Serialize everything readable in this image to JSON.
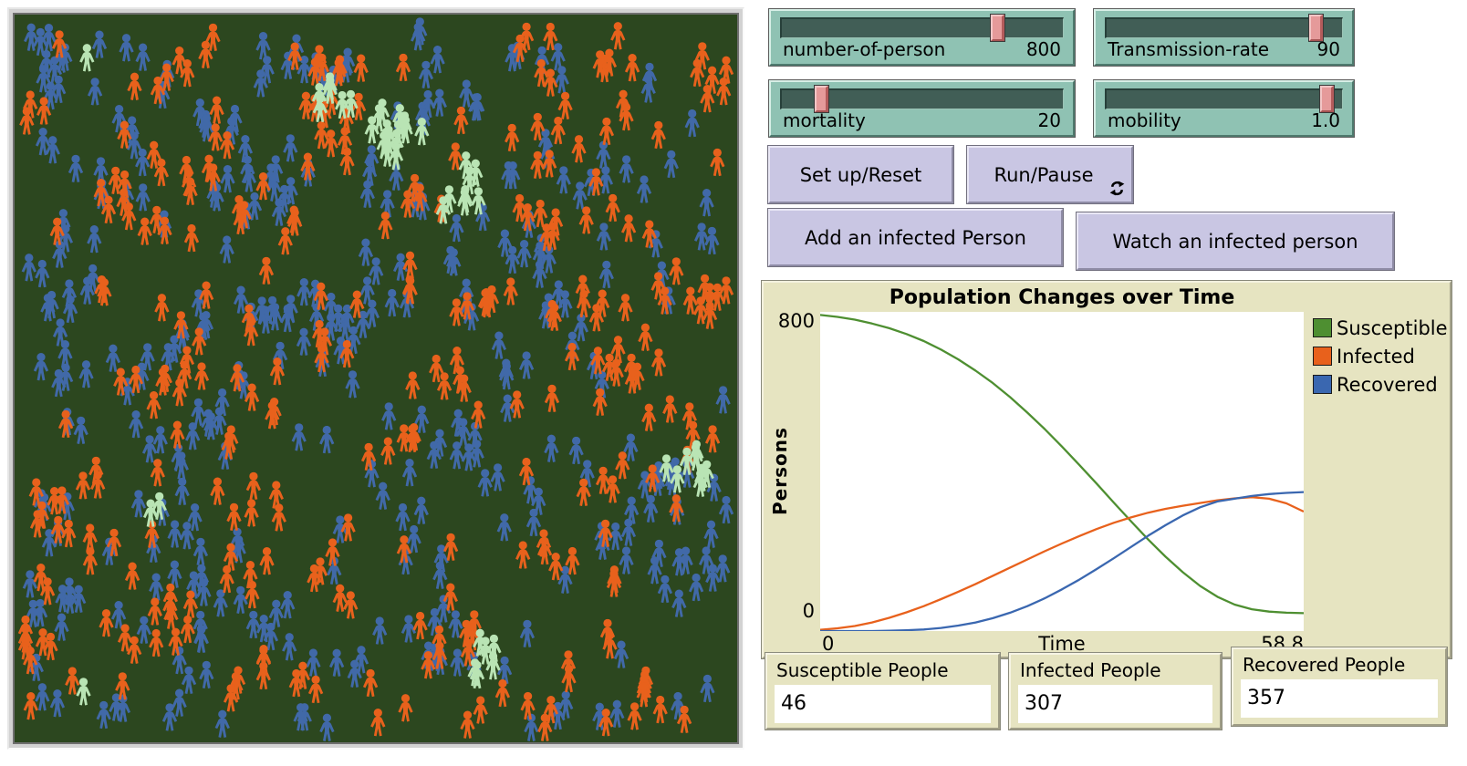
{
  "world": {
    "background_color": "#2c471f",
    "person_colors": {
      "susceptible": "#b9e4b4",
      "infected": "#e8611c",
      "recovered": "#4169a8"
    },
    "counts": {
      "susceptible": 46,
      "infected": 307,
      "recovered": 357
    }
  },
  "sliders": [
    {
      "label": "number-of-person",
      "value": "800"
    },
    {
      "label": "Transmission-rate",
      "value": "90"
    },
    {
      "label": "mortality",
      "value": "20"
    },
    {
      "label": "mobility",
      "value": "1.0"
    }
  ],
  "buttons": {
    "setup": "Set up/Reset",
    "run": "Run/Pause",
    "add": "Add an infected Person",
    "watch": "Watch an infected person"
  },
  "plot": {
    "title": "Population Changes over Time",
    "ylabel": "Persons",
    "xlabel": "Time",
    "y_max_label": "800",
    "y_min_label": "0",
    "x_min_label": "0",
    "x_max_label": "58.8",
    "legend": [
      {
        "label": "Susceptible",
        "color": "#4e8f31"
      },
      {
        "label": "Infected",
        "color": "#e8611c"
      },
      {
        "label": "Recovered",
        "color": "#3a67b0"
      }
    ]
  },
  "chart_data": {
    "type": "line",
    "title": "Population Changes over Time",
    "xlabel": "Time",
    "ylabel": "Persons",
    "xlim": [
      0,
      58.8
    ],
    "ylim": [
      0,
      820
    ],
    "grid": false,
    "legend_position": "right",
    "x": [
      0,
      2.1,
      4.2,
      6.3,
      8.4,
      10.5,
      12.6,
      14.7,
      16.8,
      18.9,
      21,
      23.1,
      25.2,
      27.3,
      29.4,
      31.5,
      33.6,
      35.7,
      37.8,
      39.9,
      42,
      44.1,
      46.2,
      48.3,
      50.4,
      52.5,
      54.6,
      56.7,
      58.8
    ],
    "series": [
      {
        "name": "Susceptible",
        "color": "#4e8f31",
        "values": [
          812,
          807,
          800,
          790,
          778,
          763,
          745,
          723,
          698,
          669,
          637,
          601,
          561,
          519,
          474,
          427,
          379,
          330,
          282,
          235,
          191,
          151,
          116,
          88,
          68,
          56,
          50,
          47,
          46
        ]
      },
      {
        "name": "Infected",
        "color": "#e8611c",
        "values": [
          3,
          7,
          13,
          22,
          34,
          48,
          64,
          82,
          101,
          121,
          142,
          163,
          184,
          205,
          225,
          244,
          262,
          278,
          292,
          304,
          314,
          322,
          329,
          336,
          341,
          344,
          340,
          328,
          307
        ]
      },
      {
        "name": "Recovered",
        "color": "#3a67b0",
        "values": [
          0,
          0,
          0,
          0,
          1,
          2,
          4,
          8,
          14,
          22,
          33,
          47,
          64,
          84,
          107,
          132,
          159,
          187,
          216,
          245,
          272,
          297,
          318,
          333,
          340,
          347,
          352,
          355,
          357
        ]
      }
    ]
  },
  "monitors": [
    {
      "label": "Susceptible People",
      "value": "46"
    },
    {
      "label": "Infected People",
      "value": "307"
    },
    {
      "label": "Recovered People",
      "value": "357"
    }
  ]
}
